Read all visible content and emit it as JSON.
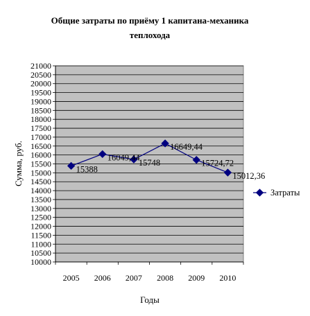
{
  "chart_data": {
    "type": "line",
    "title_line1": "Общие затраты по приёму 1 капитана-механика",
    "title_line2": "теплохода",
    "xlabel": "Годы",
    "ylabel": "Сумма, руб.",
    "categories": [
      "2005",
      "2006",
      "2007",
      "2008",
      "2009",
      "2010"
    ],
    "series": [
      {
        "name": "Затраты",
        "values": [
          15388,
          16049.44,
          15748,
          16649.44,
          15724.72,
          15012.36
        ],
        "labels": [
          "15388",
          "16049,44",
          "15748",
          "16649,44",
          "15724,72",
          "15012,36"
        ],
        "color": "#000080"
      }
    ],
    "ylim": [
      10000,
      21000
    ],
    "ytick_step": 500,
    "yticks": [
      "10000",
      "10500",
      "11000",
      "11500",
      "12000",
      "12500",
      "13000",
      "13500",
      "14000",
      "14500",
      "15000",
      "15500",
      "16000",
      "16500",
      "17000",
      "17500",
      "18000",
      "18500",
      "19000",
      "19500",
      "20000",
      "20500",
      "21000"
    ],
    "grid": true,
    "plot_background": "#c0c0c0",
    "legend_position": "right"
  }
}
